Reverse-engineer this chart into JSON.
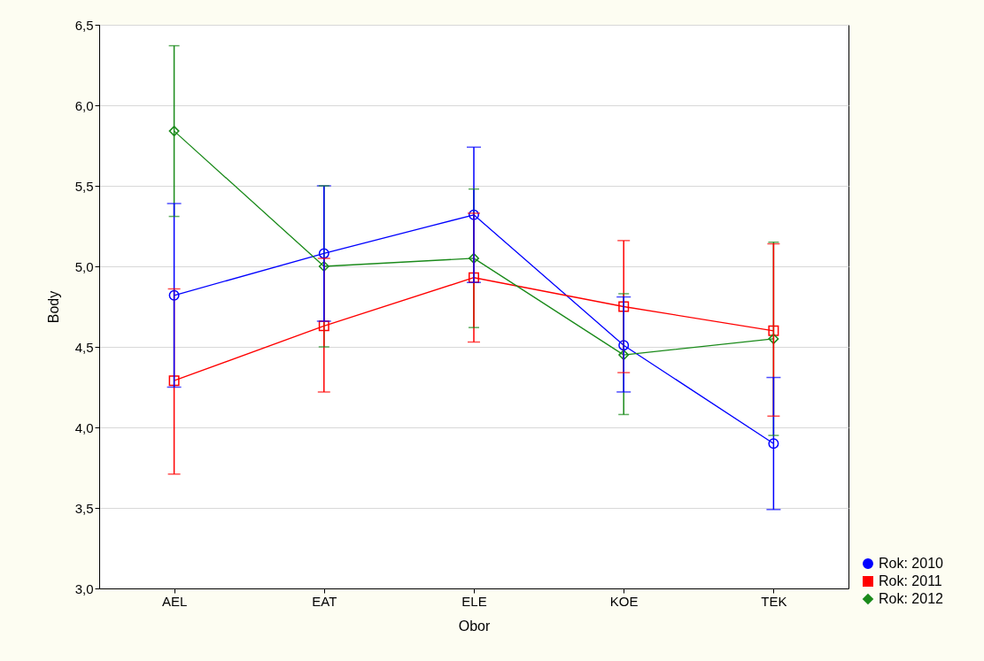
{
  "chart_data": {
    "type": "line",
    "xlabel": "Obor",
    "ylabel": "Body",
    "categories": [
      "AEL",
      "EAT",
      "ELE",
      "KOE",
      "TEK"
    ],
    "ylim": [
      3.0,
      6.5
    ],
    "yticks": [
      {
        "value": 3.0,
        "label": "3,0"
      },
      {
        "value": 3.5,
        "label": "3,5"
      },
      {
        "value": 4.0,
        "label": "4,0"
      },
      {
        "value": 4.5,
        "label": "4,5"
      },
      {
        "value": 5.0,
        "label": "5,0"
      },
      {
        "value": 5.5,
        "label": "5,5"
      },
      {
        "value": 6.0,
        "label": "6,0"
      },
      {
        "value": 6.5,
        "label": "6,5"
      }
    ],
    "grid": "y",
    "legend": "bottom right",
    "series": [
      {
        "name": "Rok: 2010",
        "color": "#0000ff",
        "marker": "circle",
        "values": [
          4.82,
          5.08,
          5.32,
          4.51,
          3.9
        ],
        "errors": [
          [
            4.25,
            5.39
          ],
          [
            4.66,
            5.5
          ],
          [
            4.9,
            5.74
          ],
          [
            4.22,
            4.81
          ],
          [
            3.49,
            4.31
          ]
        ]
      },
      {
        "name": "Rok: 2011",
        "color": "#ff0000",
        "marker": "square",
        "values": [
          4.29,
          4.63,
          4.93,
          4.75,
          4.6
        ],
        "errors": [
          [
            3.71,
            4.86
          ],
          [
            4.22,
            5.05
          ],
          [
            4.53,
            5.33
          ],
          [
            4.34,
            5.16
          ],
          [
            4.07,
            5.14
          ]
        ]
      },
      {
        "name": "Rok: 2012",
        "color": "#1a8a1a",
        "marker": "diamond",
        "values": [
          5.84,
          5.0,
          5.05,
          4.45,
          4.55
        ],
        "errors": [
          [
            5.31,
            6.37
          ],
          [
            4.5,
            5.5
          ],
          [
            4.62,
            5.48
          ],
          [
            4.08,
            4.83
          ],
          [
            3.95,
            5.15
          ]
        ]
      }
    ]
  }
}
